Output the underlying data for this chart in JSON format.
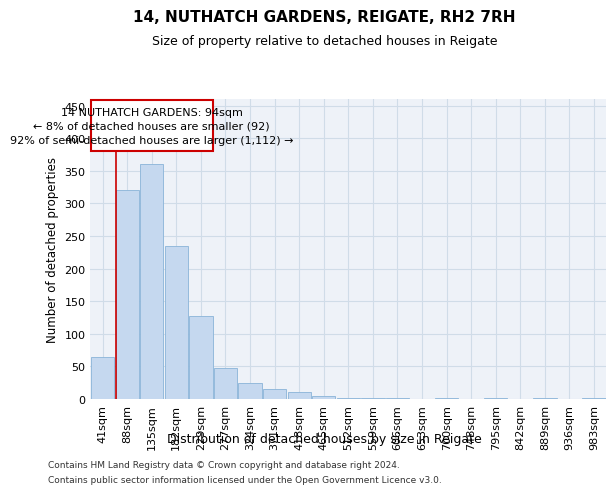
{
  "title1": "14, NUTHATCH GARDENS, REIGATE, RH2 7RH",
  "title2": "Size of property relative to detached houses in Reigate",
  "xlabel": "Distribution of detached houses by size in Reigate",
  "ylabel": "Number of detached properties",
  "categories": [
    "41sqm",
    "88sqm",
    "135sqm",
    "182sqm",
    "229sqm",
    "277sqm",
    "324sqm",
    "371sqm",
    "418sqm",
    "465sqm",
    "512sqm",
    "559sqm",
    "606sqm",
    "653sqm",
    "700sqm",
    "748sqm",
    "795sqm",
    "842sqm",
    "889sqm",
    "936sqm",
    "983sqm"
  ],
  "values": [
    65,
    320,
    360,
    235,
    127,
    48,
    25,
    15,
    10,
    5,
    2,
    1,
    1,
    0,
    2,
    0,
    2,
    0,
    2,
    0,
    2
  ],
  "bar_color": "#c5d8ef",
  "bar_edge_color": "#8ab4d8",
  "grid_color": "#d0dce8",
  "vline_color": "#cc0000",
  "annotation_text": "14 NUTHATCH GARDENS: 94sqm\n← 8% of detached houses are smaller (92)\n92% of semi-detached houses are larger (1,112) →",
  "annotation_box_color": "#cc0000",
  "ylim": [
    0,
    460
  ],
  "yticks": [
    0,
    50,
    100,
    150,
    200,
    250,
    300,
    350,
    400,
    450
  ],
  "footer1": "Contains HM Land Registry data © Crown copyright and database right 2024.",
  "footer2": "Contains public sector information licensed under the Open Government Licence v3.0.",
  "bg_color": "#eef2f8"
}
